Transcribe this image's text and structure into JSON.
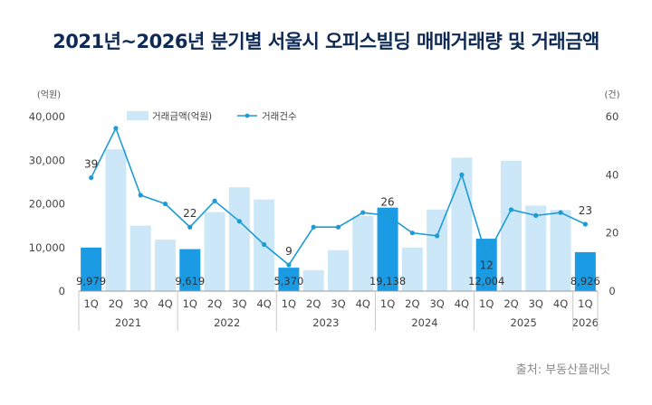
{
  "title": "2021년~2026년 분기별 서울시 오피스빌딩 매매거래량 및 거래금액",
  "source": "출처: 부동산플래닛",
  "chart_data": {
    "type": "bar+line",
    "categories": [
      "1Q",
      "2Q",
      "3Q",
      "4Q",
      "1Q",
      "2Q",
      "3Q",
      "4Q",
      "1Q",
      "2Q",
      "3Q",
      "4Q",
      "1Q",
      "2Q",
      "3Q",
      "4Q",
      "1Q",
      "2Q",
      "3Q",
      "4Q",
      "1Q"
    ],
    "years": [
      {
        "label": "2021",
        "span": 4
      },
      {
        "label": "2022",
        "span": 4
      },
      {
        "label": "2023",
        "span": 4
      },
      {
        "label": "2024",
        "span": 4
      },
      {
        "label": "2025",
        "span": 4
      },
      {
        "label": "2026",
        "span": 1
      }
    ],
    "series": [
      {
        "name": "거래금액(억원)",
        "type": "bar",
        "axis": "left",
        "values": [
          9979,
          32500,
          15000,
          11800,
          9619,
          18100,
          23800,
          21000,
          5370,
          4800,
          9400,
          17200,
          19138,
          10000,
          18700,
          30600,
          12004,
          29900,
          19600,
          18600,
          8926
        ],
        "labels": [
          "9,979",
          "",
          "",
          "",
          "9,619",
          "",
          "",
          "",
          "5,370",
          "",
          "",
          "",
          "19,138",
          "",
          "",
          "",
          "12,004",
          "",
          "",
          "",
          "8,926"
        ]
      },
      {
        "name": "거래건수",
        "type": "line",
        "axis": "right",
        "values": [
          39,
          56,
          33,
          30,
          22,
          31,
          24,
          16,
          9,
          22,
          22,
          27,
          26,
          20,
          19,
          40,
          12,
          28,
          26,
          27,
          23
        ],
        "labels": [
          "39",
          "",
          "",
          "",
          "22",
          "",
          "",
          "",
          "9",
          "",
          "",
          "",
          "26",
          "",
          "",
          "",
          "12",
          "",
          "",
          "",
          "23"
        ]
      }
    ],
    "y_left": {
      "unit": "(억원)",
      "min": 0,
      "max": 40000,
      "ticks": [
        "0",
        "10,000",
        "20,000",
        "30,000",
        "40,000"
      ]
    },
    "y_right": {
      "unit": "(건)",
      "min": 0,
      "max": 60,
      "ticks": [
        "0",
        "20",
        "40",
        "60"
      ]
    },
    "highlight_quarters": "1Q",
    "colors": {
      "bar": "#cce8f8",
      "bar_highlight": "#1a9be3",
      "line": "#1d9bd6",
      "axis": "#999999",
      "title": "#0f2a55"
    },
    "legend_position": "top-center",
    "grid": false
  }
}
